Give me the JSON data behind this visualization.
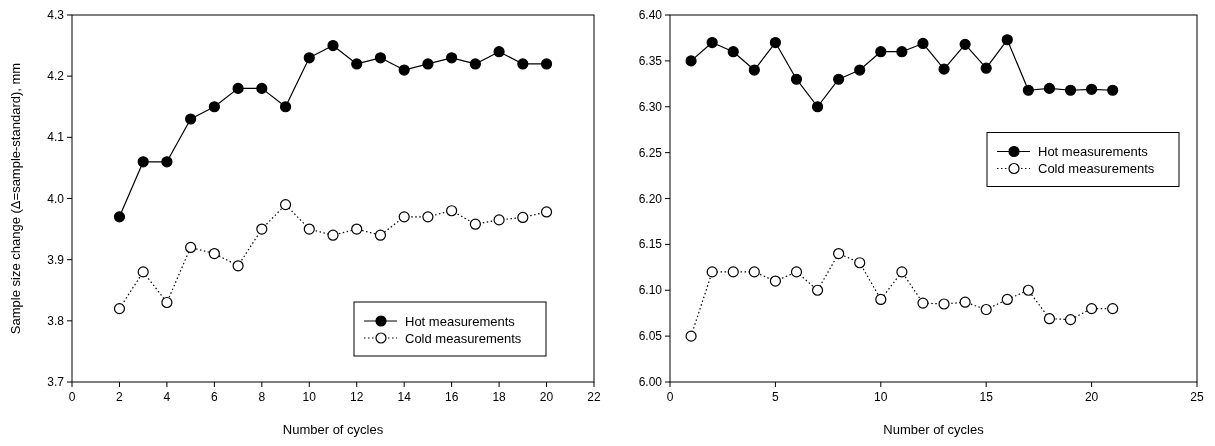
{
  "chart_data": [
    {
      "type": "line",
      "xlabel": "Number of cycles",
      "ylabel": "Sample size change (Δ=sample-standard), mm",
      "x": [
        2,
        3,
        4,
        5,
        6,
        7,
        8,
        9,
        10,
        11,
        12,
        13,
        14,
        15,
        16,
        17,
        18,
        19,
        20
      ],
      "series": [
        {
          "name": "Hot measurements",
          "color": "#000000",
          "marker": "circle",
          "line_style": "solid",
          "values": [
            3.97,
            4.06,
            4.06,
            4.13,
            4.15,
            4.18,
            4.18,
            4.15,
            4.23,
            4.25,
            4.22,
            4.23,
            4.21,
            4.22,
            4.23,
            4.22,
            4.24,
            4.22,
            4.22
          ]
        },
        {
          "name": "Cold measurements",
          "color": "#000000",
          "marker": "circle",
          "line_style": "dotted",
          "values": [
            3.82,
            3.88,
            3.83,
            3.92,
            3.91,
            3.89,
            3.95,
            3.99,
            3.95,
            3.94,
            3.95,
            3.94,
            3.97,
            3.97,
            3.98,
            3.958,
            3.965,
            3.969,
            3.978
          ]
        }
      ],
      "xlim": [
        0,
        22
      ],
      "xticks": [
        0,
        2,
        4,
        6,
        8,
        10,
        12,
        14,
        16,
        18,
        20,
        22
      ],
      "ylim": [
        3.7,
        4.3
      ],
      "yticks": [
        3.7,
        3.8,
        3.9,
        {
          "value": 4.0,
          "label": "4.0"
        },
        4.1,
        4.2,
        4.3
      ],
      "grid": false,
      "legend": "bottom right"
    },
    {
      "type": "line",
      "xlabel": "Number of cycles",
      "x": [
        1,
        2,
        3,
        4,
        5,
        6,
        7,
        8,
        9,
        10,
        11,
        12,
        13,
        14,
        15,
        16,
        17,
        18,
        19,
        20,
        21
      ],
      "series": [
        {
          "name": "Hot measurements",
          "color": "#000000",
          "marker": "circle",
          "line_style": "solid",
          "values": [
            6.35,
            6.37,
            6.36,
            6.34,
            6.37,
            6.33,
            6.3,
            6.33,
            6.34,
            6.36,
            6.36,
            6.369,
            6.341,
            6.368,
            6.342,
            6.373,
            6.318,
            6.32,
            6.318,
            6.319,
            6.318
          ]
        },
        {
          "name": "Cold measurements",
          "color": "#000000",
          "marker": "circle",
          "line_style": "dotted",
          "values": [
            6.05,
            6.12,
            6.12,
            6.12,
            6.11,
            6.12,
            6.1,
            6.14,
            6.13,
            6.09,
            6.12,
            6.086,
            6.085,
            6.087,
            6.079,
            6.09,
            6.1,
            6.069,
            6.068,
            6.08,
            6.08
          ]
        }
      ],
      "xlim": [
        0,
        25
      ],
      "xticks": [
        0,
        5,
        10,
        15,
        20,
        25
      ],
      "ylim": [
        6.0,
        6.4
      ],
      "yticks": [
        {
          "value": 6.0,
          "label": "6.00"
        },
        {
          "value": 6.05,
          "label": "6.05"
        },
        {
          "value": 6.1,
          "label": "6.10"
        },
        {
          "value": 6.15,
          "label": "6.15"
        },
        {
          "value": 6.2,
          "label": "6.20"
        },
        {
          "value": 6.25,
          "label": "6.25"
        },
        {
          "value": 6.3,
          "label": "6.30"
        },
        {
          "value": 6.35,
          "label": "6.35"
        },
        {
          "value": 6.4,
          "label": "6.40"
        }
      ],
      "grid": false,
      "legend": "right"
    }
  ]
}
